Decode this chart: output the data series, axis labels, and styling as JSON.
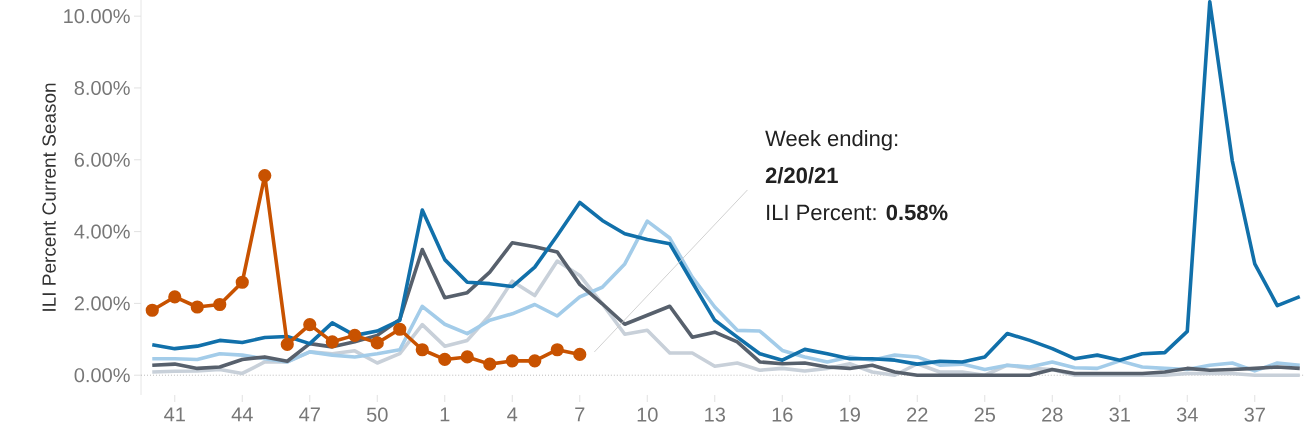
{
  "chart_data": {
    "type": "line",
    "ylabel": "ILI Percent Current Season",
    "categories": [
      null,
      "41",
      null,
      null,
      "44",
      null,
      null,
      "47",
      null,
      null,
      "50",
      null,
      null,
      "1",
      null,
      null,
      "4",
      null,
      null,
      "7",
      null,
      null,
      "10",
      null,
      null,
      "13",
      null,
      null,
      "16",
      null,
      null,
      "19",
      null,
      null,
      "22",
      null,
      null,
      "25",
      null,
      null,
      "28",
      null,
      null,
      "31",
      null,
      null,
      "34",
      null,
      null,
      "37",
      null,
      null
    ],
    "ylim": [
      -0.55,
      10.45
    ],
    "yticks": [
      {
        "value": 0,
        "label": "0.00%"
      },
      {
        "value": 2,
        "label": "2.00%"
      },
      {
        "value": 4,
        "label": "4.00%"
      },
      {
        "value": 6,
        "label": "6.00%"
      },
      {
        "value": 8,
        "label": "8.00%"
      },
      {
        "value": 10,
        "label": "10.00%"
      }
    ],
    "marker": "none",
    "line_style": "solid",
    "series": [
      {
        "color": "#c8d0d9",
        "values": [
          0.09,
          0.11,
          0.12,
          0.16,
          0.05,
          0.37,
          0.37,
          0.65,
          0.6,
          0.68,
          0.34,
          0.6,
          1.41,
          0.81,
          0.97,
          1.67,
          2.62,
          2.22,
          3.18,
          2.78,
          1.99,
          1.14,
          1.25,
          0.62,
          0.62,
          0.25,
          0.34,
          0.14,
          0.19,
          0.12,
          0.19,
          0.32,
          0.09,
          0,
          0.32,
          0.09,
          0.09,
          0,
          0.28,
          0.19,
          0.16,
          0,
          0,
          0,
          0,
          0,
          0.05,
          0.05,
          0.05,
          0,
          0,
          0
        ]
      },
      {
        "color": "#a3cce9",
        "values": [
          0.46,
          0.46,
          0.44,
          0.6,
          0.56,
          0.46,
          0.37,
          0.65,
          0.56,
          0.51,
          0.6,
          0.71,
          1.92,
          1.42,
          1.16,
          1.53,
          1.71,
          1.97,
          1.65,
          2.18,
          2.45,
          3.1,
          4.29,
          3.82,
          2.73,
          1.9,
          1.25,
          1.23,
          0.69,
          0.51,
          0.37,
          0.51,
          0.42,
          0.56,
          0.51,
          0.28,
          0.31,
          0.16,
          0.28,
          0.23,
          0.37,
          0.21,
          0.19,
          0.4,
          0.23,
          0.19,
          0.16,
          0.28,
          0.34,
          0.12,
          0.34,
          0.28
        ]
      },
      {
        "color": "#57606c",
        "values": [
          0.28,
          0.31,
          0.19,
          0.23,
          0.44,
          0.51,
          0.39,
          0.88,
          0.79,
          0.93,
          1.11,
          1.55,
          3.5,
          2.16,
          2.3,
          2.87,
          3.69,
          3.58,
          3.43,
          2.53,
          1.99,
          1.42,
          1.67,
          1.92,
          1.06,
          1.2,
          0.93,
          0.37,
          0.32,
          0.34,
          0.23,
          0.19,
          0.28,
          0.09,
          0,
          0,
          0,
          0,
          0,
          0,
          0.16,
          0.05,
          0.05,
          0.05,
          0.05,
          0.09,
          0.19,
          0.14,
          0.16,
          0.19,
          0.23,
          0.19
        ]
      },
      {
        "color": "#1170aa",
        "values": [
          0.85,
          0.74,
          0.81,
          0.97,
          0.91,
          1.05,
          1.08,
          0.88,
          1.46,
          1.11,
          1.23,
          1.53,
          4.6,
          3.22,
          2.59,
          2.55,
          2.47,
          3.01,
          3.89,
          4.81,
          4.31,
          3.94,
          3.78,
          3.66,
          2.59,
          1.53,
          1.06,
          0.6,
          0.42,
          0.72,
          0.6,
          0.46,
          0.46,
          0.42,
          0.31,
          0.39,
          0.37,
          0.51,
          1.16,
          0.97,
          0.74,
          0.46,
          0.56,
          0.42,
          0.6,
          0.63,
          1.22,
          10.4,
          5.97,
          3.1,
          1.94,
          2.19
        ]
      },
      {
        "color": "#c85200",
        "marker": "circle",
        "values": [
          1.81,
          2.18,
          1.9,
          1.97,
          2.59,
          5.56,
          0.86,
          1.41,
          0.93,
          1.11,
          0.9,
          1.28,
          0.71,
          0.44,
          0.51,
          0.31,
          0.4,
          0.4,
          0.71,
          0.58,
          null,
          null,
          null,
          null,
          null,
          null,
          null,
          null,
          null,
          null,
          null,
          null,
          null,
          null,
          null,
          null,
          null,
          null,
          null,
          null,
          null,
          null,
          null,
          null,
          null,
          null,
          null,
          null,
          null,
          null,
          null,
          null
        ]
      }
    ],
    "ref_lines": [
      {
        "axis": "y",
        "value": 0,
        "color": "#bbbbbb",
        "line_style": "dotted"
      }
    ],
    "annotations": [
      "Week ending:",
      "**2/20/21**",
      "ILI Percent: **0.58%**"
    ]
  }
}
